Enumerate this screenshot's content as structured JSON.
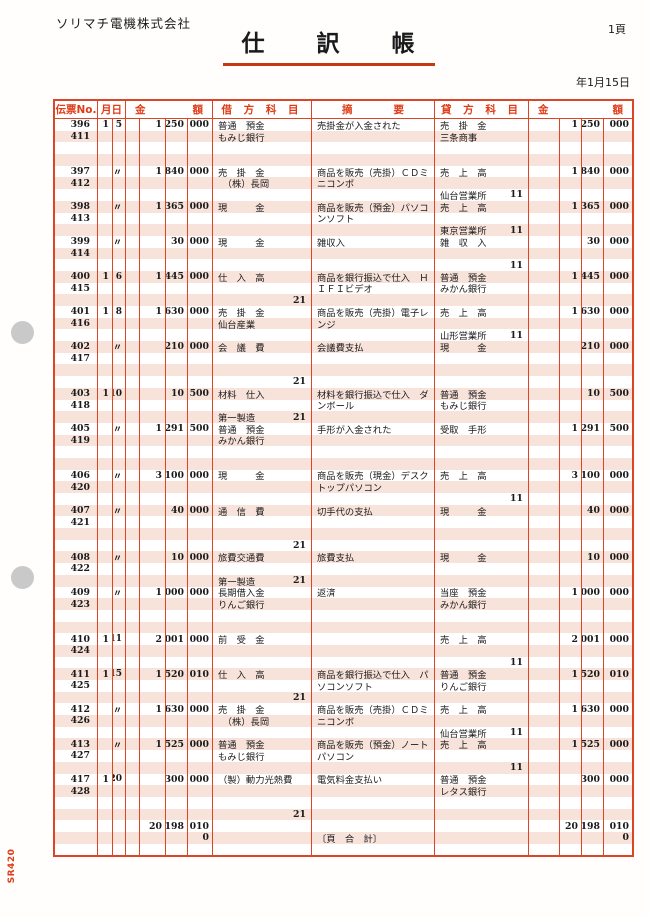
{
  "page": {
    "company": "ソリマチ電機株式会社",
    "title": "仕　　訳　　帳",
    "page_number": "1頁",
    "date": "年1月15日",
    "form_code": "SR420"
  },
  "colors": {
    "accent": "#dc4627",
    "stripe": "#f8e3db",
    "title_underline": "#c63812"
  },
  "table": {
    "headers": {
      "voucher": "伝票No.",
      "date": "月日",
      "amount": [
        "金",
        "額"
      ],
      "debit": "借 方 科 目",
      "memo": [
        "摘",
        "要"
      ],
      "credit": "貸 方 科 目"
    },
    "lines": [
      {
        "no": "396",
        "m": "1",
        "d": "5",
        "a": [
          "",
          "1",
          "250",
          "000"
        ],
        "db": "普通　預金",
        "mm": "売掛金が入金された",
        "cr": "売　掛　金",
        "b": [
          "",
          "1",
          "250",
          "000"
        ]
      },
      {
        "no": "411",
        "db": "もみじ銀行",
        "cr": "三条商事"
      },
      {},
      {},
      {
        "no": "397",
        "d": "〃",
        "a": [
          "",
          "1",
          "840",
          "000"
        ],
        "db": "売　掛　金",
        "mm": "商品を販売（売掛）ＣＤミ",
        "cr": "売　上　高",
        "b": [
          "",
          "1",
          "840",
          "000"
        ]
      },
      {
        "no": "412",
        "db": "　（株）長岡",
        "mm": "ニコンポ"
      },
      {
        "cr": "仙台営業所",
        "cc": "11"
      },
      {
        "no": "398",
        "d": "〃",
        "a": [
          "",
          "1",
          "365",
          "000"
        ],
        "db": "現　　　金",
        "mm": "商品を販売（預金）パソコ",
        "cr": "売　上　高",
        "b": [
          "",
          "1",
          "365",
          "000"
        ]
      },
      {
        "no": "413",
        "mm": "ンソフト"
      },
      {
        "cr": "東京営業所",
        "cc": "11"
      },
      {
        "no": "399",
        "d": "〃",
        "a": [
          "",
          "",
          "30",
          "000"
        ],
        "db": "現　　　金",
        "mm": "雑収入",
        "cr": "雑　収　入",
        "b": [
          "",
          "",
          "30",
          "000"
        ]
      },
      {
        "no": "414"
      },
      {
        "cc": "11"
      },
      {
        "no": "400",
        "m": "1",
        "d": "6",
        "a": [
          "",
          "1",
          "445",
          "000"
        ],
        "db": "仕　入　高",
        "mm": "商品を銀行振込で仕入　Ｈ",
        "cr": "普通　預金",
        "b": [
          "",
          "1",
          "445",
          "000"
        ]
      },
      {
        "no": "415",
        "mm": "ＩＦＩビデオ",
        "cr": "みかん銀行"
      },
      {
        "dc": "21"
      },
      {
        "no": "401",
        "m": "1",
        "d": "8",
        "a": [
          "",
          "1",
          "630",
          "000"
        ],
        "db": "売　掛　金",
        "mm": "商品を販売（売掛）電子レ",
        "cr": "売　上　高",
        "b": [
          "",
          "1",
          "630",
          "000"
        ]
      },
      {
        "no": "416",
        "db": "仙台産業",
        "mm": "ンジ"
      },
      {
        "cr": "山形営業所",
        "cc": "11"
      },
      {
        "no": "402",
        "d": "〃",
        "a": [
          "",
          "",
          "210",
          "000"
        ],
        "db": "会　議　費",
        "mm": "会議費支払",
        "cr": "現　　　金",
        "b": [
          "",
          "",
          "210",
          "000"
        ]
      },
      {
        "no": "417"
      },
      {},
      {
        "dc": "21"
      },
      {
        "no": "403",
        "m": "1",
        "d": "10",
        "a": [
          "",
          "",
          "10",
          "500"
        ],
        "db": "材料　仕入",
        "mm": "材料を銀行振込で仕入　ダ",
        "cr": "普通　預金",
        "b": [
          "",
          "",
          "10",
          "500"
        ]
      },
      {
        "no": "418",
        "mm": "ンボール",
        "cr": "もみじ銀行"
      },
      {
        "db": "第一製造",
        "dc": "21"
      },
      {
        "no": "405",
        "d": "〃",
        "a": [
          "",
          "1",
          "291",
          "500"
        ],
        "db": "普通　預金",
        "mm": "手形が入金された",
        "cr": "受取　手形",
        "b": [
          "",
          "1",
          "291",
          "500"
        ]
      },
      {
        "no": "419",
        "db": "みかん銀行"
      },
      {},
      {},
      {
        "no": "406",
        "d": "〃",
        "a": [
          "",
          "3",
          "100",
          "000"
        ],
        "db": "現　　　金",
        "mm": "商品を販売（現金）デスク",
        "cr": "売　上　高",
        "b": [
          "",
          "3",
          "100",
          "000"
        ]
      },
      {
        "no": "420",
        "mm": "トップパソコン"
      },
      {
        "cc": "11"
      },
      {
        "no": "407",
        "d": "〃",
        "a": [
          "",
          "",
          "40",
          "000"
        ],
        "db": "通　信　費",
        "mm": "切手代の支払",
        "cr": "現　　　金",
        "b": [
          "",
          "",
          "40",
          "000"
        ]
      },
      {
        "no": "421"
      },
      {},
      {
        "dc": "21"
      },
      {
        "no": "408",
        "d": "〃",
        "a": [
          "",
          "",
          "10",
          "000"
        ],
        "db": "旅費交通費",
        "mm": "旅費支払",
        "cr": "現　　　金",
        "b": [
          "",
          "",
          "10",
          "000"
        ]
      },
      {
        "no": "422"
      },
      {
        "db": "第一製造",
        "dc": "21"
      },
      {
        "no": "409",
        "d": "〃",
        "a": [
          "",
          "1",
          "000",
          "000"
        ],
        "db": "長期借入金",
        "mm": "返済",
        "cr": "当座　預金",
        "b": [
          "",
          "1",
          "000",
          "000"
        ]
      },
      {
        "no": "423",
        "db": "りんご銀行",
        "cr": "みかん銀行"
      },
      {},
      {},
      {
        "no": "410",
        "m": "1",
        "d": "11",
        "a": [
          "",
          "2",
          "001",
          "000"
        ],
        "db": "前　受　金",
        "cr": "売　上　高",
        "b": [
          "",
          "2",
          "001",
          "000"
        ]
      },
      {
        "no": "424"
      },
      {
        "cc": "11"
      },
      {
        "no": "411",
        "m": "1",
        "d": "15",
        "a": [
          "",
          "1",
          "520",
          "010"
        ],
        "db": "仕　入　高",
        "mm": "商品を銀行振込で仕入　パ",
        "cr": "普通　預金",
        "b": [
          "",
          "1",
          "520",
          "010"
        ]
      },
      {
        "no": "425",
        "mm": "ソコンソフト",
        "cr": "りんご銀行"
      },
      {
        "dc": "21"
      },
      {
        "no": "412",
        "d": "〃",
        "a": [
          "",
          "1",
          "630",
          "000"
        ],
        "db": "売　掛　金",
        "mm": "商品を販売（売掛）ＣＤミ",
        "cr": "売　上　高",
        "b": [
          "",
          "1",
          "630",
          "000"
        ]
      },
      {
        "no": "426",
        "db": "　（株）長岡",
        "mm": "ニコンボ"
      },
      {
        "cr": "仙台営業所",
        "cc": "11"
      },
      {
        "no": "413",
        "d": "〃",
        "a": [
          "",
          "1",
          "525",
          "000"
        ],
        "db": "普通　預金",
        "mm": "商品を販売（預金）ノート",
        "cr": "売　上　高",
        "b": [
          "",
          "1",
          "525",
          "000"
        ]
      },
      {
        "no": "427",
        "db": "もみじ銀行",
        "mm": "パソコン"
      },
      {
        "cc": "11"
      },
      {
        "no": "417",
        "m": "1",
        "d": "20",
        "a": [
          "",
          "",
          "300",
          "000"
        ],
        "db": "（製）動力光熱費",
        "mm": "電気料金支払い",
        "cr": "普通　預金",
        "b": [
          "",
          "",
          "300",
          "000"
        ]
      },
      {
        "no": "428",
        "cr": "レタス銀行"
      },
      {},
      {
        "dc": "21"
      },
      {
        "a": [
          "",
          "20",
          "198",
          "010"
        ],
        "b": [
          "",
          "20",
          "198",
          "010"
        ]
      },
      {
        "a": [
          "",
          "",
          "",
          "0"
        ],
        "mm": "〔頁　合　計〕",
        "b": [
          "",
          "",
          "",
          "0"
        ]
      },
      {}
    ]
  }
}
